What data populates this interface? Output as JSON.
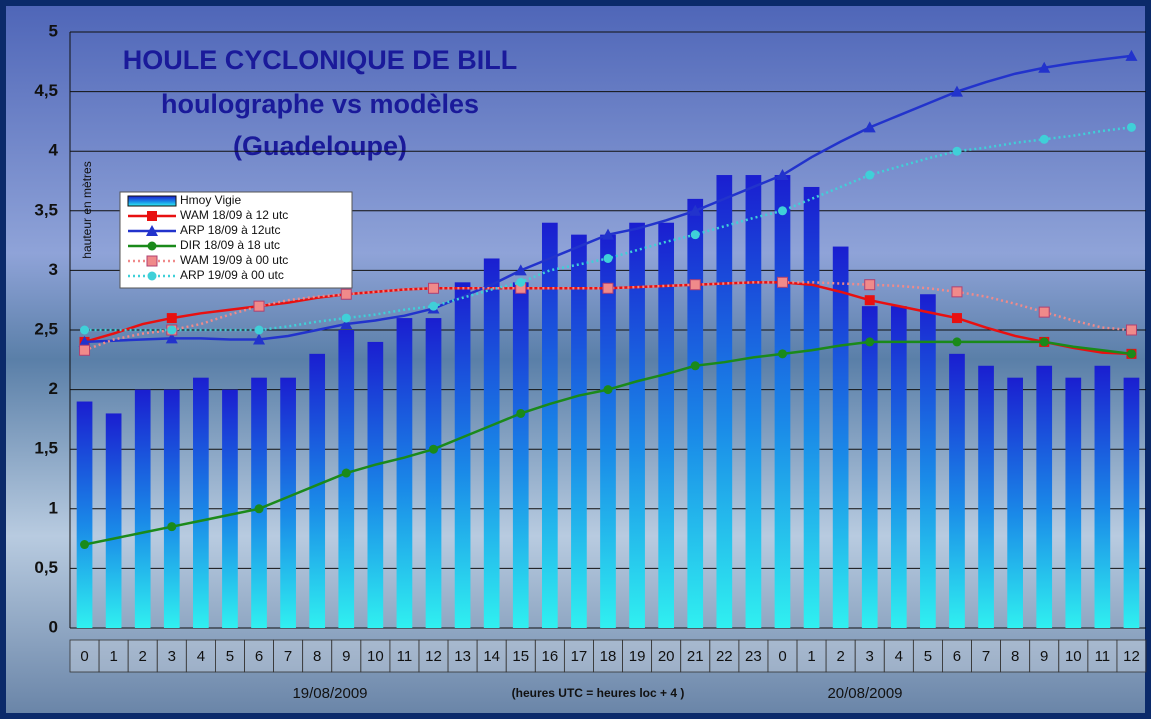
{
  "chart_data": {
    "type": "bar",
    "title": "HOULE CYCLONIQUE DE BILL",
    "subtitle": [
      "houlographe vs modèles",
      "(Guadeloupe)"
    ],
    "y_label": "hauteur en mètres",
    "dates": [
      "19/08/2009",
      "20/08/2009"
    ],
    "note": "(heures UTC = heures loc + 4 )",
    "categories": [
      "0",
      "1",
      "2",
      "3",
      "4",
      "5",
      "6",
      "7",
      "8",
      "9",
      "10",
      "11",
      "12",
      "13",
      "14",
      "15",
      "16",
      "17",
      "18",
      "19",
      "20",
      "21",
      "22",
      "23",
      "0",
      "1",
      "2",
      "3",
      "4",
      "5",
      "6",
      "7",
      "8",
      "9",
      "10",
      "11",
      "12"
    ],
    "ylim": [
      0,
      5
    ],
    "yticks": [
      0,
      {
        "value": 0.5,
        "label": "0,5"
      },
      1,
      {
        "value": 1.5,
        "label": "1,5"
      },
      2,
      {
        "value": 2.5,
        "label": "2,5"
      },
      3,
      {
        "value": 3.5,
        "label": "3,5"
      },
      4,
      {
        "value": 4.5,
        "label": "4,5"
      },
      5
    ],
    "grid": true,
    "series": [
      {
        "name": "Hmoy Vigie",
        "type": "bar",
        "color": "#1a2ed6",
        "values": [
          1.9,
          1.8,
          2.0,
          2.0,
          2.1,
          2.0,
          2.1,
          2.1,
          2.3,
          2.5,
          2.4,
          2.6,
          2.6,
          2.9,
          3.1,
          2.9,
          3.4,
          3.3,
          3.3,
          3.4,
          3.4,
          3.6,
          3.8,
          3.8,
          3.8,
          3.7,
          3.2,
          2.7,
          2.7,
          2.8,
          2.3,
          2.2,
          2.1,
          2.2,
          2.1,
          2.2,
          2.1
        ]
      },
      {
        "name": "WAM 18/09 à 12 utc",
        "type": "line",
        "color": "#e81010",
        "marker": "square",
        "style": "solid",
        "values": [
          2.4,
          2.47,
          2.55,
          2.6,
          2.64,
          2.67,
          2.7,
          2.73,
          2.77,
          2.8,
          2.82,
          2.84,
          2.85,
          2.85,
          2.85,
          2.85,
          2.85,
          2.85,
          2.85,
          2.86,
          2.87,
          2.88,
          2.89,
          2.9,
          2.9,
          2.88,
          2.82,
          2.75,
          2.7,
          2.65,
          2.6,
          2.52,
          2.45,
          2.4,
          2.35,
          2.31,
          2.3
        ]
      },
      {
        "name": "ARP 18/09 à 12utc",
        "type": "line",
        "color": "#2233cc",
        "marker": "triangle",
        "style": "solid",
        "values": [
          2.4,
          2.41,
          2.42,
          2.43,
          2.43,
          2.42,
          2.42,
          2.45,
          2.5,
          2.55,
          2.58,
          2.62,
          2.68,
          2.78,
          2.88,
          3.0,
          3.1,
          3.2,
          3.3,
          3.35,
          3.42,
          3.5,
          3.6,
          3.7,
          3.8,
          3.95,
          4.08,
          4.2,
          4.3,
          4.4,
          4.5,
          4.58,
          4.65,
          4.7,
          4.74,
          4.77,
          4.8
        ]
      },
      {
        "name": "DIR 18/09 à 18 utc",
        "type": "line",
        "color": "#1a8a1a",
        "marker": "circle",
        "style": "solid",
        "values": [
          0.7,
          0.75,
          0.8,
          0.85,
          0.9,
          0.95,
          1.0,
          1.1,
          1.2,
          1.3,
          1.37,
          1.43,
          1.5,
          1.6,
          1.7,
          1.8,
          1.88,
          1.95,
          2.0,
          2.07,
          2.13,
          2.2,
          2.23,
          2.27,
          2.3,
          2.33,
          2.37,
          2.4,
          2.4,
          2.4,
          2.4,
          2.4,
          2.4,
          2.4,
          2.36,
          2.33,
          2.3
        ]
      },
      {
        "name": "WAM 19/09 à 00 utc",
        "type": "line",
        "color": "#f08a8a",
        "marker": "square",
        "style": "dotted",
        "values": [
          2.33,
          2.42,
          2.47,
          2.5,
          2.55,
          2.63,
          2.7,
          2.75,
          2.78,
          2.8,
          2.82,
          2.84,
          2.85,
          2.85,
          2.85,
          2.85,
          2.85,
          2.85,
          2.85,
          2.86,
          2.87,
          2.88,
          2.89,
          2.9,
          2.9,
          2.9,
          2.89,
          2.88,
          2.87,
          2.85,
          2.82,
          2.78,
          2.72,
          2.65,
          2.58,
          2.52,
          2.5
        ]
      },
      {
        "name": "ARP 19/09 à 00 utc",
        "type": "line",
        "color": "#3fd0d8",
        "marker": "circle",
        "style": "dotted",
        "values": [
          2.5,
          2.5,
          2.5,
          2.5,
          2.5,
          2.5,
          2.5,
          2.53,
          2.57,
          2.6,
          2.63,
          2.67,
          2.7,
          2.77,
          2.84,
          2.9,
          3.0,
          3.05,
          3.1,
          3.17,
          3.24,
          3.3,
          3.37,
          3.44,
          3.5,
          3.6,
          3.7,
          3.8,
          3.87,
          3.94,
          4.0,
          4.03,
          4.07,
          4.1,
          4.13,
          4.17,
          4.2
        ]
      }
    ]
  }
}
